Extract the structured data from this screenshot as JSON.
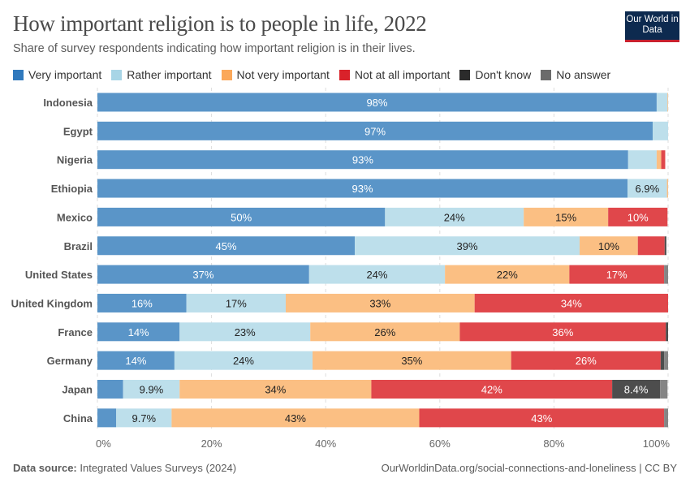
{
  "header": {
    "title": "How important religion is to people in life, 2022",
    "subtitle": "Share of survey respondents indicating how important religion is in their lives.",
    "logo_text": "Our World in Data"
  },
  "footer": {
    "source_label": "Data source:",
    "source": "Integrated Values Surveys (2024)",
    "url": "OurWorldinData.org/social-connections-and-loneliness | CC BY"
  },
  "chart_data": {
    "type": "bar",
    "orientation": "horizontal",
    "stacked": true,
    "title": "How important religion is to people in life, 2022",
    "xlim": [
      0,
      100
    ],
    "x_ticks": [
      "0%",
      "20%",
      "40%",
      "60%",
      "80%",
      "100%"
    ],
    "grid": "vertical dashed",
    "legend_position": "top",
    "categories": [
      "Indonesia",
      "Egypt",
      "Nigeria",
      "Ethiopia",
      "Mexico",
      "Brazil",
      "United States",
      "United Kingdom",
      "France",
      "Germany",
      "Japan",
      "China"
    ],
    "series": [
      {
        "name": "Very important",
        "color": "#5a95c8",
        "legend_color": "#3079bd",
        "text_color": "#ffffff",
        "values": [
          98,
          97.3,
          93,
          92.9,
          50.4,
          45.1,
          37.1,
          15.6,
          14.4,
          13.5,
          4.5,
          3.3
        ]
      },
      {
        "name": "Rather important",
        "color": "#bddfeb",
        "legend_color": "#a8d5e6",
        "text_color": "#222222",
        "values": [
          1.9,
          2.7,
          5,
          6.9,
          24.3,
          39.4,
          23.8,
          17.4,
          22.9,
          24.2,
          9.9,
          9.7
        ]
      },
      {
        "name": "Not very important",
        "color": "#fbbf83",
        "legend_color": "#fba85a",
        "text_color": "#222222",
        "values": [
          0.1,
          0,
          0.8,
          0.2,
          14.8,
          10.2,
          21.8,
          33.1,
          26.2,
          34.8,
          33.6,
          43.4
        ]
      },
      {
        "name": "Not at all important",
        "color": "#e0474b",
        "legend_color": "#d9222a",
        "text_color": "#ffffff",
        "values": [
          0,
          0,
          0.7,
          0,
          10.4,
          4.7,
          16.6,
          33.9,
          36.1,
          26.2,
          42.2,
          42.9
        ]
      },
      {
        "name": "Don't know",
        "color": "#4d4d4d",
        "legend_color": "#2b2b2b",
        "text_color": "#ffffff",
        "values": [
          0,
          0,
          0,
          0,
          0,
          0.3,
          0,
          0,
          0.4,
          0.6,
          8.4,
          0
        ]
      },
      {
        "name": "No answer",
        "color": "#858585",
        "legend_color": "#6b6b6b",
        "text_color": "#ffffff",
        "values": [
          0,
          0,
          0,
          0,
          0,
          0,
          0.7,
          0,
          0,
          0.7,
          1.3,
          0.7
        ]
      }
    ]
  }
}
